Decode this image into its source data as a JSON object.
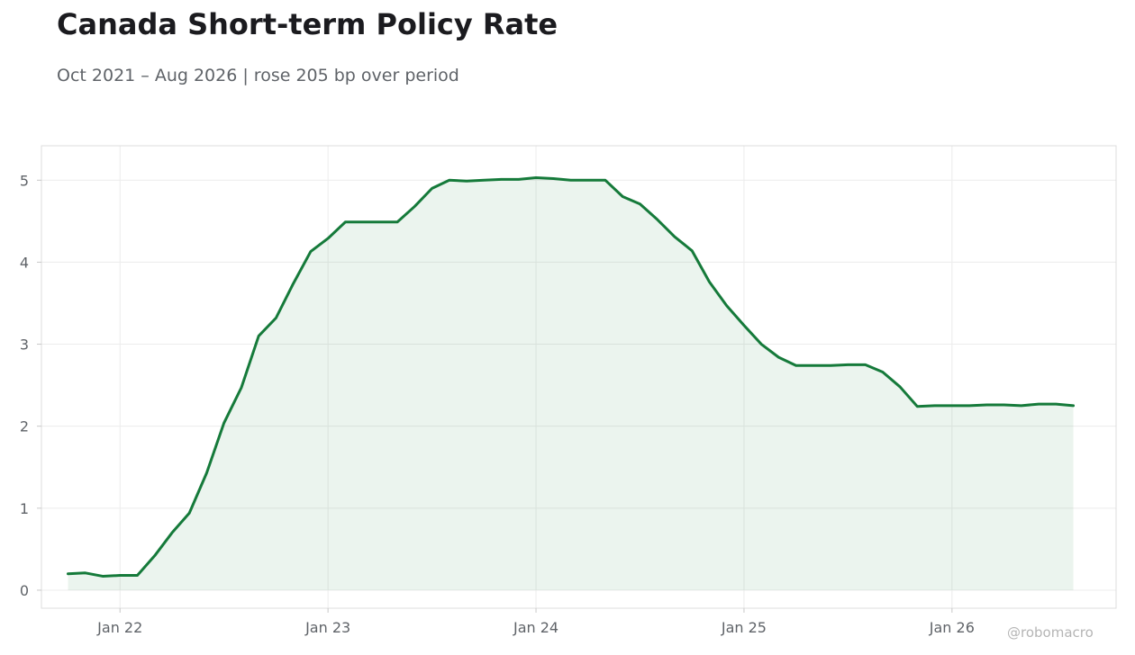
{
  "title": "Canada Short-term Policy Rate",
  "subtitle": "Oct 2021 – Aug 2026 | rose 205 bp over period",
  "watermark": "@robomacro",
  "colors": {
    "line": "#157a3a",
    "fill": "#157a3a",
    "grid": "#ececec",
    "frame": "#dcdcdc",
    "text": "#5f6368"
  },
  "chart_data": {
    "type": "area",
    "title": "Canada Short-term Policy Rate",
    "subtitle": "Oct 2021 – Aug 2026 | rose 205 bp over period",
    "xlabel": "",
    "ylabel": "",
    "x_ticks": [
      "Jan 22",
      "Jan 23",
      "Jan 24",
      "Jan 25",
      "Jan 26"
    ],
    "y_ticks": [
      0,
      1,
      2,
      3,
      4,
      5
    ],
    "ylim": [
      -0.22,
      5.42
    ],
    "xlim": [
      "2021-08-15",
      "2026-10-15"
    ],
    "grid": true,
    "legend": "none",
    "series": [
      {
        "x": [
          "2021-10",
          "2021-11",
          "2021-12",
          "2022-01",
          "2022-02",
          "2022-03",
          "2022-04",
          "2022-05",
          "2022-06",
          "2022-07",
          "2022-08",
          "2022-09",
          "2022-10",
          "2022-11",
          "2022-12",
          "2023-01",
          "2023-02",
          "2023-03",
          "2023-04",
          "2023-05",
          "2023-06",
          "2023-07",
          "2023-08",
          "2023-09",
          "2023-10",
          "2023-11",
          "2023-12",
          "2024-01",
          "2024-02",
          "2024-03",
          "2024-04",
          "2024-05",
          "2024-06",
          "2024-07",
          "2024-08",
          "2024-09",
          "2024-10",
          "2024-11",
          "2024-12",
          "2025-01",
          "2025-02",
          "2025-03",
          "2025-04",
          "2025-05",
          "2025-06",
          "2025-07",
          "2025-08",
          "2025-09",
          "2025-10",
          "2025-11",
          "2025-12",
          "2026-01",
          "2026-02",
          "2026-03",
          "2026-04",
          "2026-05",
          "2026-06",
          "2026-07",
          "2026-08"
        ],
        "values": [
          0.2,
          0.21,
          0.17,
          0.18,
          0.18,
          0.42,
          0.7,
          0.94,
          1.43,
          2.04,
          2.47,
          3.1,
          3.32,
          3.74,
          4.13,
          4.29,
          4.49,
          4.49,
          4.49,
          4.49,
          4.68,
          4.9,
          5.0,
          4.99,
          5.0,
          5.01,
          5.01,
          5.03,
          5.02,
          5.0,
          5.0,
          5.0,
          4.8,
          4.71,
          4.52,
          4.31,
          4.14,
          3.76,
          3.47,
          3.23,
          3.0,
          2.84,
          2.74,
          2.74,
          2.74,
          2.75,
          2.75,
          2.66,
          2.48,
          2.24,
          2.25,
          2.25,
          2.25,
          2.26,
          2.26,
          2.25,
          2.27,
          2.27,
          2.25
        ]
      }
    ]
  }
}
